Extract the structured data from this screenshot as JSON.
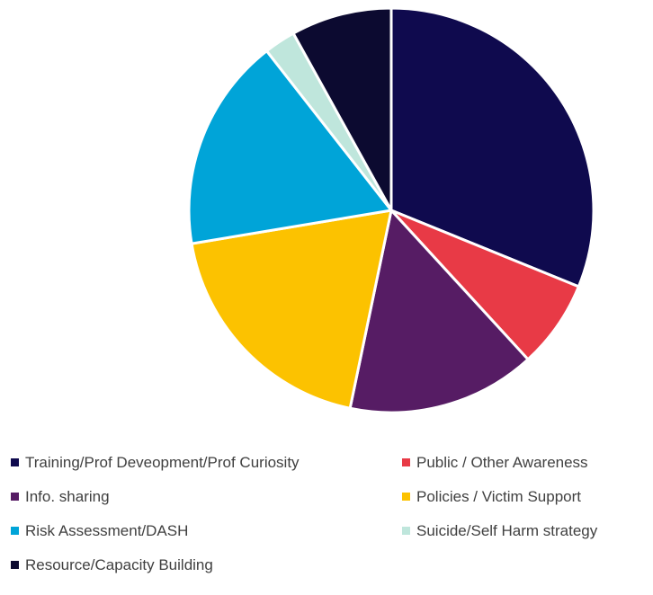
{
  "chart_data": {
    "type": "pie",
    "title": "",
    "start_angle_deg": 0,
    "direction": "clockwise",
    "legend_position": "bottom",
    "slices": [
      {
        "label": "Training/Prof Deveopment/Prof Curiosity",
        "value": 31,
        "color": "#0f0a4e"
      },
      {
        "label": "Public / Other Awareness",
        "value": 7,
        "color": "#e83a46"
      },
      {
        "label": "Info. sharing",
        "value": 15,
        "color": "#561c64"
      },
      {
        "label": "Policies / Victim Support",
        "value": 19,
        "color": "#fcc200"
      },
      {
        "label": "Risk Assessment/DASH",
        "value": 17,
        "color": "#00a4d8"
      },
      {
        "label": "Suicide/Self Harm strategy",
        "value": 2.5,
        "color": "#bfe6dc"
      },
      {
        "label": "Resource/Capacity Building",
        "value": 8,
        "color": "#0c0a30"
      }
    ]
  }
}
